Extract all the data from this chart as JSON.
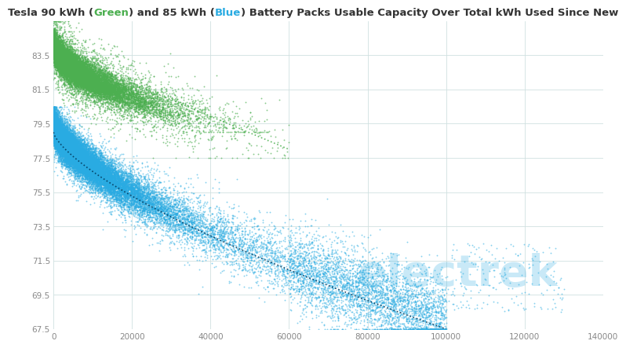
{
  "title_parts": [
    {
      "text": "Tesla 90 kWh (",
      "color": "#333333"
    },
    {
      "text": "Green",
      "color": "#4CAF50"
    },
    {
      "text": ") and 85 kWh (",
      "color": "#333333"
    },
    {
      "text": "Blue",
      "color": "#29ABE2"
    },
    {
      "text": ") Battery Packs Usable Capacity Over Total kWh Used Since New",
      "color": "#333333"
    }
  ],
  "xlim": [
    0,
    140000
  ],
  "ylim": [
    67.5,
    85.5
  ],
  "yticks": [
    67.5,
    69.5,
    71.5,
    73.5,
    75.5,
    77.5,
    79.5,
    81.5,
    83.5
  ],
  "xticks": [
    0,
    20000,
    40000,
    60000,
    80000,
    100000,
    120000,
    140000
  ],
  "xtick_labels": [
    "0",
    "20000",
    "40000",
    "60000",
    "80000",
    "100000",
    "120000",
    "140000"
  ],
  "bg_color": "#ffffff",
  "grid_color": "#d0e0e0",
  "color_90kwh": "#4CAF50",
  "color_85kwh": "#29ABE2",
  "watermark": "electrek",
  "watermark_color": "#29ABE2",
  "watermark_alpha": 0.25,
  "seed": 42,
  "title_fontsize": 9.5,
  "tick_fontsize": 7.5
}
